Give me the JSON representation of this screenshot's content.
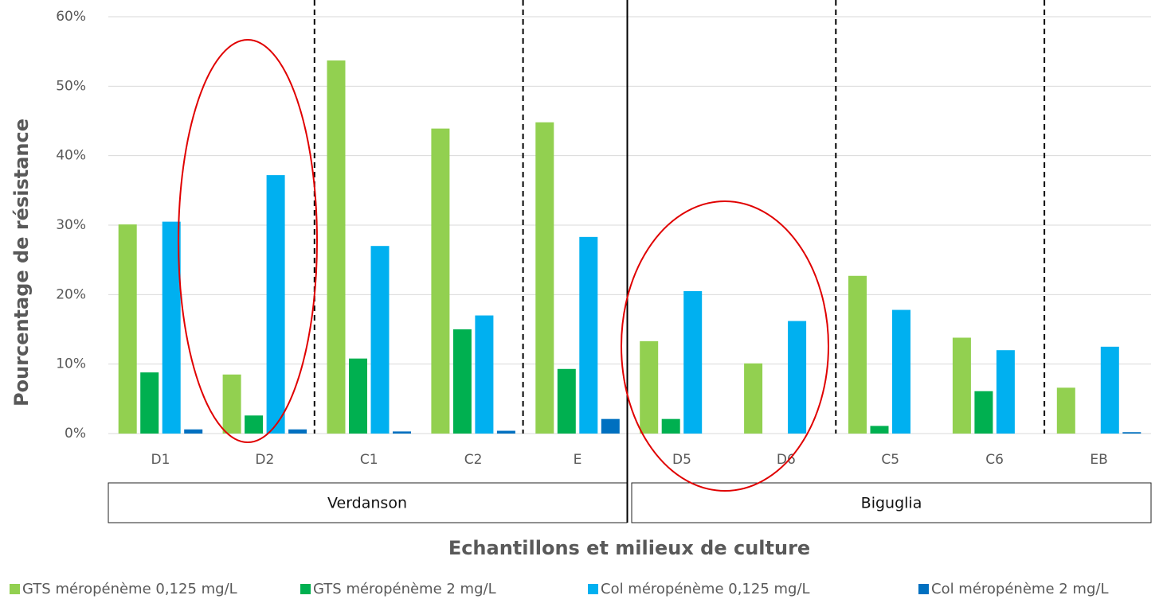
{
  "chart_data": {
    "type": "bar",
    "y_label": "Pourcentage de résistance",
    "x_label": "Echantillons et milieux de culture",
    "categories": [
      "D1",
      "D2",
      "C1",
      "C2",
      "E",
      "D5",
      "D6",
      "C5",
      "C6",
      "EB"
    ],
    "groups": [
      "Verdanson",
      "Biguglia"
    ],
    "series": [
      {
        "name": "GTS méropénème 0,125 mg/L",
        "color": "#92d050",
        "values": [
          30.1,
          8.5,
          53.7,
          43.9,
          44.8,
          13.3,
          10.1,
          22.7,
          13.8,
          6.6
        ]
      },
      {
        "name": "GTS méropénème 2 mg/L",
        "color": "#00b050",
        "values": [
          8.8,
          2.6,
          10.8,
          15.0,
          9.3,
          2.1,
          0,
          1.1,
          6.1,
          0
        ]
      },
      {
        "name": "Col méropénème 0,125 mg/L",
        "color": "#00b0f0",
        "values": [
          30.5,
          37.2,
          27.0,
          17.0,
          28.3,
          20.5,
          16.2,
          17.8,
          12.0,
          12.5
        ]
      },
      {
        "name": "Col méropénème 2 mg/L",
        "color": "#0070c0",
        "values": [
          0.6,
          0.6,
          0.3,
          0.4,
          2.1,
          0,
          0,
          0,
          0,
          0.2
        ]
      }
    ],
    "ylim": [
      0,
      60
    ],
    "yticks": [
      {
        "value": 0,
        "label": "0%"
      },
      {
        "value": 10,
        "label": "10%"
      },
      {
        "value": 20,
        "label": "20%"
      },
      {
        "value": 30,
        "label": "30%"
      },
      {
        "value": 40,
        "label": "40%"
      },
      {
        "value": 50,
        "label": "50%"
      },
      {
        "value": 60,
        "label": "60%"
      }
    ],
    "grid": true
  }
}
